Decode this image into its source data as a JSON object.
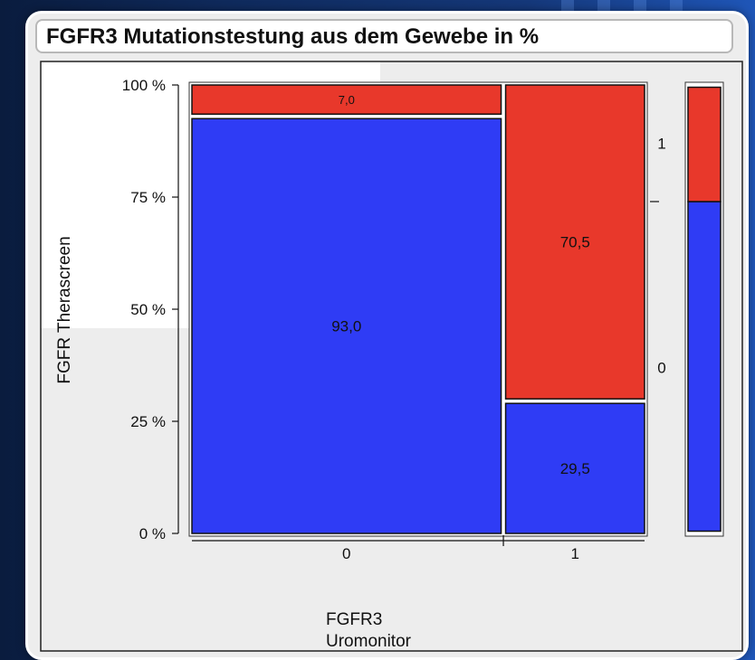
{
  "header": {
    "title": "FGFR3 Mutationstestung aus dem Gewebe in %"
  },
  "colors": {
    "level_0": "#2f3cf5",
    "level_1": "#e8382b",
    "outline": "#111111"
  },
  "chart_data": {
    "type": "mosaic",
    "xlabel": "FGFR3\nUromonitor",
    "ylabel": "FGFR Therascreen",
    "x_categories": [
      "0",
      "1"
    ],
    "x_widths": [
      0.69,
      0.31
    ],
    "y_categories": [
      "0",
      "1"
    ],
    "y_ticks": [
      "0 %",
      "25 %",
      "50 %",
      "75 %",
      "100 %"
    ],
    "ylim": [
      0,
      100
    ],
    "columns": [
      {
        "x": "0",
        "segments": [
          {
            "y": "0",
            "value": 93.0,
            "label": "93,0"
          },
          {
            "y": "1",
            "value": 7.0,
            "label": "7,0"
          }
        ]
      },
      {
        "x": "1",
        "segments": [
          {
            "y": "0",
            "value": 29.5,
            "label": "29,5"
          },
          {
            "y": "1",
            "value": 70.5,
            "label": "70,5"
          }
        ]
      }
    ],
    "marginal": {
      "segments": [
        {
          "y": "0",
          "value": 74
        },
        {
          "y": "1",
          "value": 26
        }
      ]
    }
  }
}
